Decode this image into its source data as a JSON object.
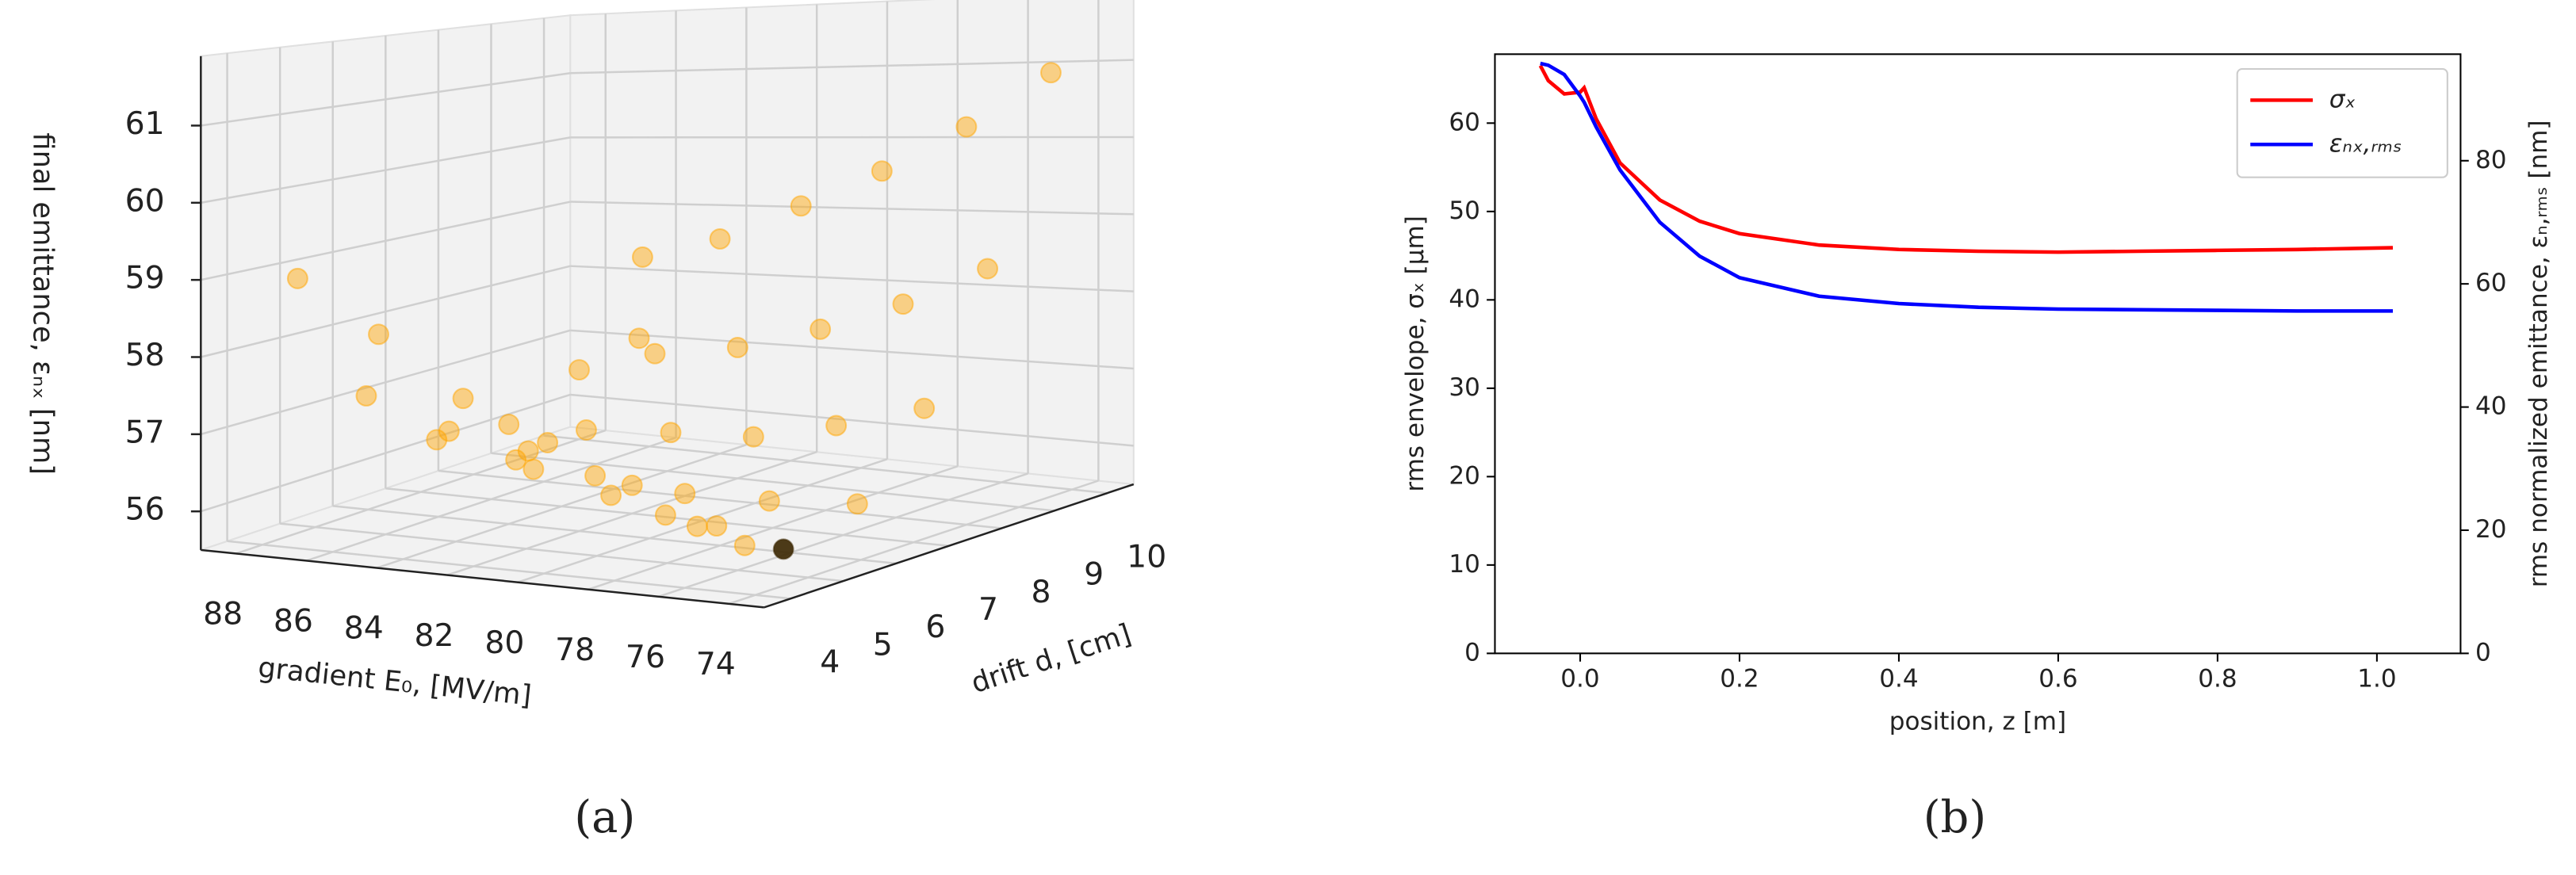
{
  "chart_data": [
    {
      "type": "scatter3d",
      "label": "(a)",
      "xlabel": "gradient E₀, [MV/m]",
      "ylabel": "drift d, [cm]",
      "zlabel": "final emittance, εₙₓ [nm]",
      "xlim": [
        73,
        89
      ],
      "ylim": [
        3.5,
        10.5
      ],
      "zlim": [
        55.5,
        61.9
      ],
      "xticks": [
        74,
        76,
        78,
        80,
        82,
        84,
        86,
        88
      ],
      "yticks": [
        4,
        5,
        6,
        7,
        8,
        9,
        10
      ],
      "zticks": [
        56,
        57,
        58,
        59,
        60,
        61
      ],
      "grid": true,
      "series": [
        {
          "color": "#ffa500",
          "x": [
            88.5,
            86.2,
            85.8,
            85.3,
            83.8,
            84.2,
            84.0,
            82.3,
            82.7,
            82.9,
            81.8,
            85.0,
            81.8,
            81.8,
            82.1,
            84.7,
            79.3,
            79.0,
            78.1,
            77.3,
            79.0,
            76.4,
            76.6,
            75.8,
            76.6,
            75.6,
            80.9,
            82.0,
            79.3,
            80.4,
            77.7,
            84.0,
            81.7,
            79.4,
            77.3,
            75.2,
            77.0,
            74.9,
            74.6
          ],
          "y": [
            5,
            5,
            4.5,
            6,
            4.5,
            5,
            6,
            5,
            5.5,
            6,
            5,
            8,
            6,
            7,
            7.5,
            9,
            4.5,
            5,
            4,
            4.5,
            6,
            4.5,
            5,
            5,
            6,
            7,
            7,
            9,
            7.5,
            9.5,
            8,
            10,
            10,
            10,
            9,
            8,
            10,
            9,
            10
          ],
          "values": [
            58.8,
            58.1,
            57.4,
            57.1,
            56.9,
            56.9,
            56.8,
            56.6,
            56.6,
            56.6,
            56.5,
            57.1,
            56.8,
            57.8,
            57.5,
            58.5,
            56.6,
            56.4,
            56.5,
            56.2,
            56.1,
            56.1,
            56.0,
            55.8,
            56.1,
            55.9,
            56.6,
            57.3,
            56.5,
            57.5,
            56.6,
            58.6,
            59.1,
            59.6,
            58.0,
            56.9,
            60.2,
            58.5,
            60.9
          ]
        },
        {
          "color": "#3a2600",
          "x": [
            73.5
          ],
          "y": [
            4.2
          ],
          "values": [
            56.0
          ]
        }
      ]
    },
    {
      "type": "line",
      "label": "(b)",
      "xlabel": "position, z [m]",
      "ylabel": "rms envelope, σₓ [μm]",
      "y2label": "rms normalized emittance, εₙ,ᵣₘₛ [nm]",
      "xlim": [
        -0.107,
        1.105
      ],
      "ylim": [
        0,
        67.8
      ],
      "y2lim": [
        0,
        97.3
      ],
      "xticks": [
        {
          "value": 0,
          "label": "0.0"
        },
        0.2,
        0.4,
        0.6,
        0.8,
        {
          "value": 1,
          "label": "1.0"
        }
      ],
      "yticks": [
        0,
        10,
        20,
        30,
        40,
        50,
        60
      ],
      "y2ticks": [
        0,
        20,
        40,
        60,
        80
      ],
      "legend": "upper right",
      "x": [
        -0.05,
        -0.04,
        -0.02,
        0.0,
        0.005,
        0.02,
        0.05,
        0.1,
        0.15,
        0.2,
        0.3,
        0.4,
        0.5,
        0.6,
        0.7,
        0.8,
        0.9,
        1.02
      ],
      "series": [
        {
          "name": "σₓ",
          "color": "#ff0000",
          "values": [
            66.5,
            64.8,
            63.3,
            63.5,
            64.0,
            60.5,
            55.5,
            51.3,
            48.9,
            47.5,
            46.2,
            45.7,
            45.5,
            45.4,
            45.5,
            45.6,
            45.7,
            45.9
          ]
        },
        {
          "name": "εₙₓ,ᵣₘₛ",
          "color": "#0000ff",
          "axis": "y2",
          "values": [
            95.8,
            95.5,
            94.0,
            90.5,
            89.5,
            85.5,
            78.5,
            70.0,
            64.5,
            61.0,
            58.0,
            56.8,
            56.2,
            55.9,
            55.8,
            55.7,
            55.6,
            55.6
          ]
        }
      ]
    }
  ]
}
